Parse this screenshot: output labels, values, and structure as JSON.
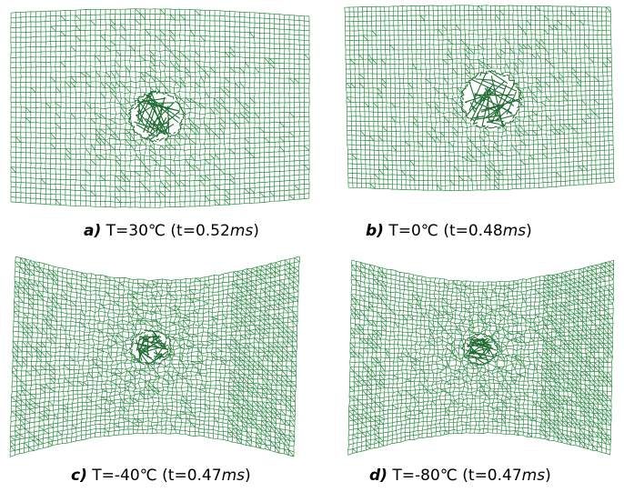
{
  "colors": {
    "mesh": "#2e8b45",
    "mesh_dark": "#1f6b32",
    "background": "#ffffff"
  },
  "panels": [
    {
      "id": "a",
      "label": "a)",
      "temp_text": "T=30℃",
      "time_prefix": "(t=0.52",
      "time_unit": "ms",
      "time_suffix": ")"
    },
    {
      "id": "b",
      "label": "b)",
      "temp_text": "T=0℃",
      "time_prefix": "(t=0.48",
      "time_unit": "ms",
      "time_suffix": ")"
    },
    {
      "id": "c",
      "label": "c)",
      "temp_text": "T=-40℃",
      "time_prefix": "(t=0.47",
      "time_unit": "ms",
      "time_suffix": ")"
    },
    {
      "id": "d",
      "label": "d)",
      "temp_text": "T=-80℃",
      "time_prefix": "(t=0.47",
      "time_unit": "ms",
      "time_suffix": ")"
    }
  ]
}
